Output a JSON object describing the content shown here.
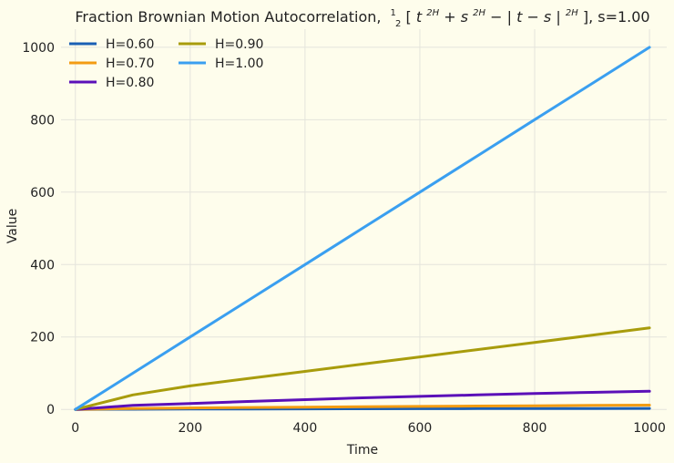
{
  "chart_data": {
    "type": "line",
    "title": "Fraction Brownian Motion Autocorrelation,",
    "title_formula": {
      "frac_num": "1",
      "frac_den": "2",
      "open": "[",
      "t": "t",
      "t_exp": "2H",
      "plus": " + ",
      "s": "s",
      "s_exp": "2H",
      "minus_bar": " − | ",
      "tms": "t − s",
      "bar2": " |",
      "abs_exp": "2H",
      "close": "], s=1.00"
    },
    "xlabel": "Time",
    "ylabel": "Value",
    "xlim": [
      -25,
      1030
    ],
    "ylim": [
      -2,
      1050
    ],
    "xticks": [
      0,
      200,
      400,
      600,
      800,
      1000
    ],
    "yticks": [
      0,
      200,
      400,
      600,
      800,
      1000
    ],
    "x": [
      0,
      100,
      200,
      300,
      400,
      500,
      600,
      700,
      800,
      900,
      1000
    ],
    "series": [
      {
        "name": "H=0.60",
        "color": "#1a5fb4",
        "values": [
          0,
          0.6,
          1.0,
          1.3,
          1.6,
          1.8,
          2.0,
          2.2,
          2.4,
          2.6,
          2.8
        ]
      },
      {
        "name": "H=0.70",
        "color": "#f39c12",
        "values": [
          0,
          2.5,
          4.0,
          5.3,
          6.4,
          7.4,
          8.4,
          9.3,
          10.2,
          11.0,
          11.8
        ]
      },
      {
        "name": "H=0.80",
        "color": "#5b10b8",
        "values": [
          0,
          11,
          16,
          22,
          27,
          32,
          36,
          40,
          44,
          47,
          50
        ]
      },
      {
        "name": "H=0.90",
        "color": "#a89c0c",
        "values": [
          0,
          40,
          65,
          85,
          105,
          125,
          145,
          165,
          185,
          205,
          225
        ]
      },
      {
        "name": "H=1.00",
        "color": "#3a9ff0",
        "values": [
          0,
          100,
          200,
          300,
          400,
          500,
          600,
          700,
          800,
          900,
          1000
        ]
      }
    ],
    "legend": "top-left",
    "grid": true
  }
}
